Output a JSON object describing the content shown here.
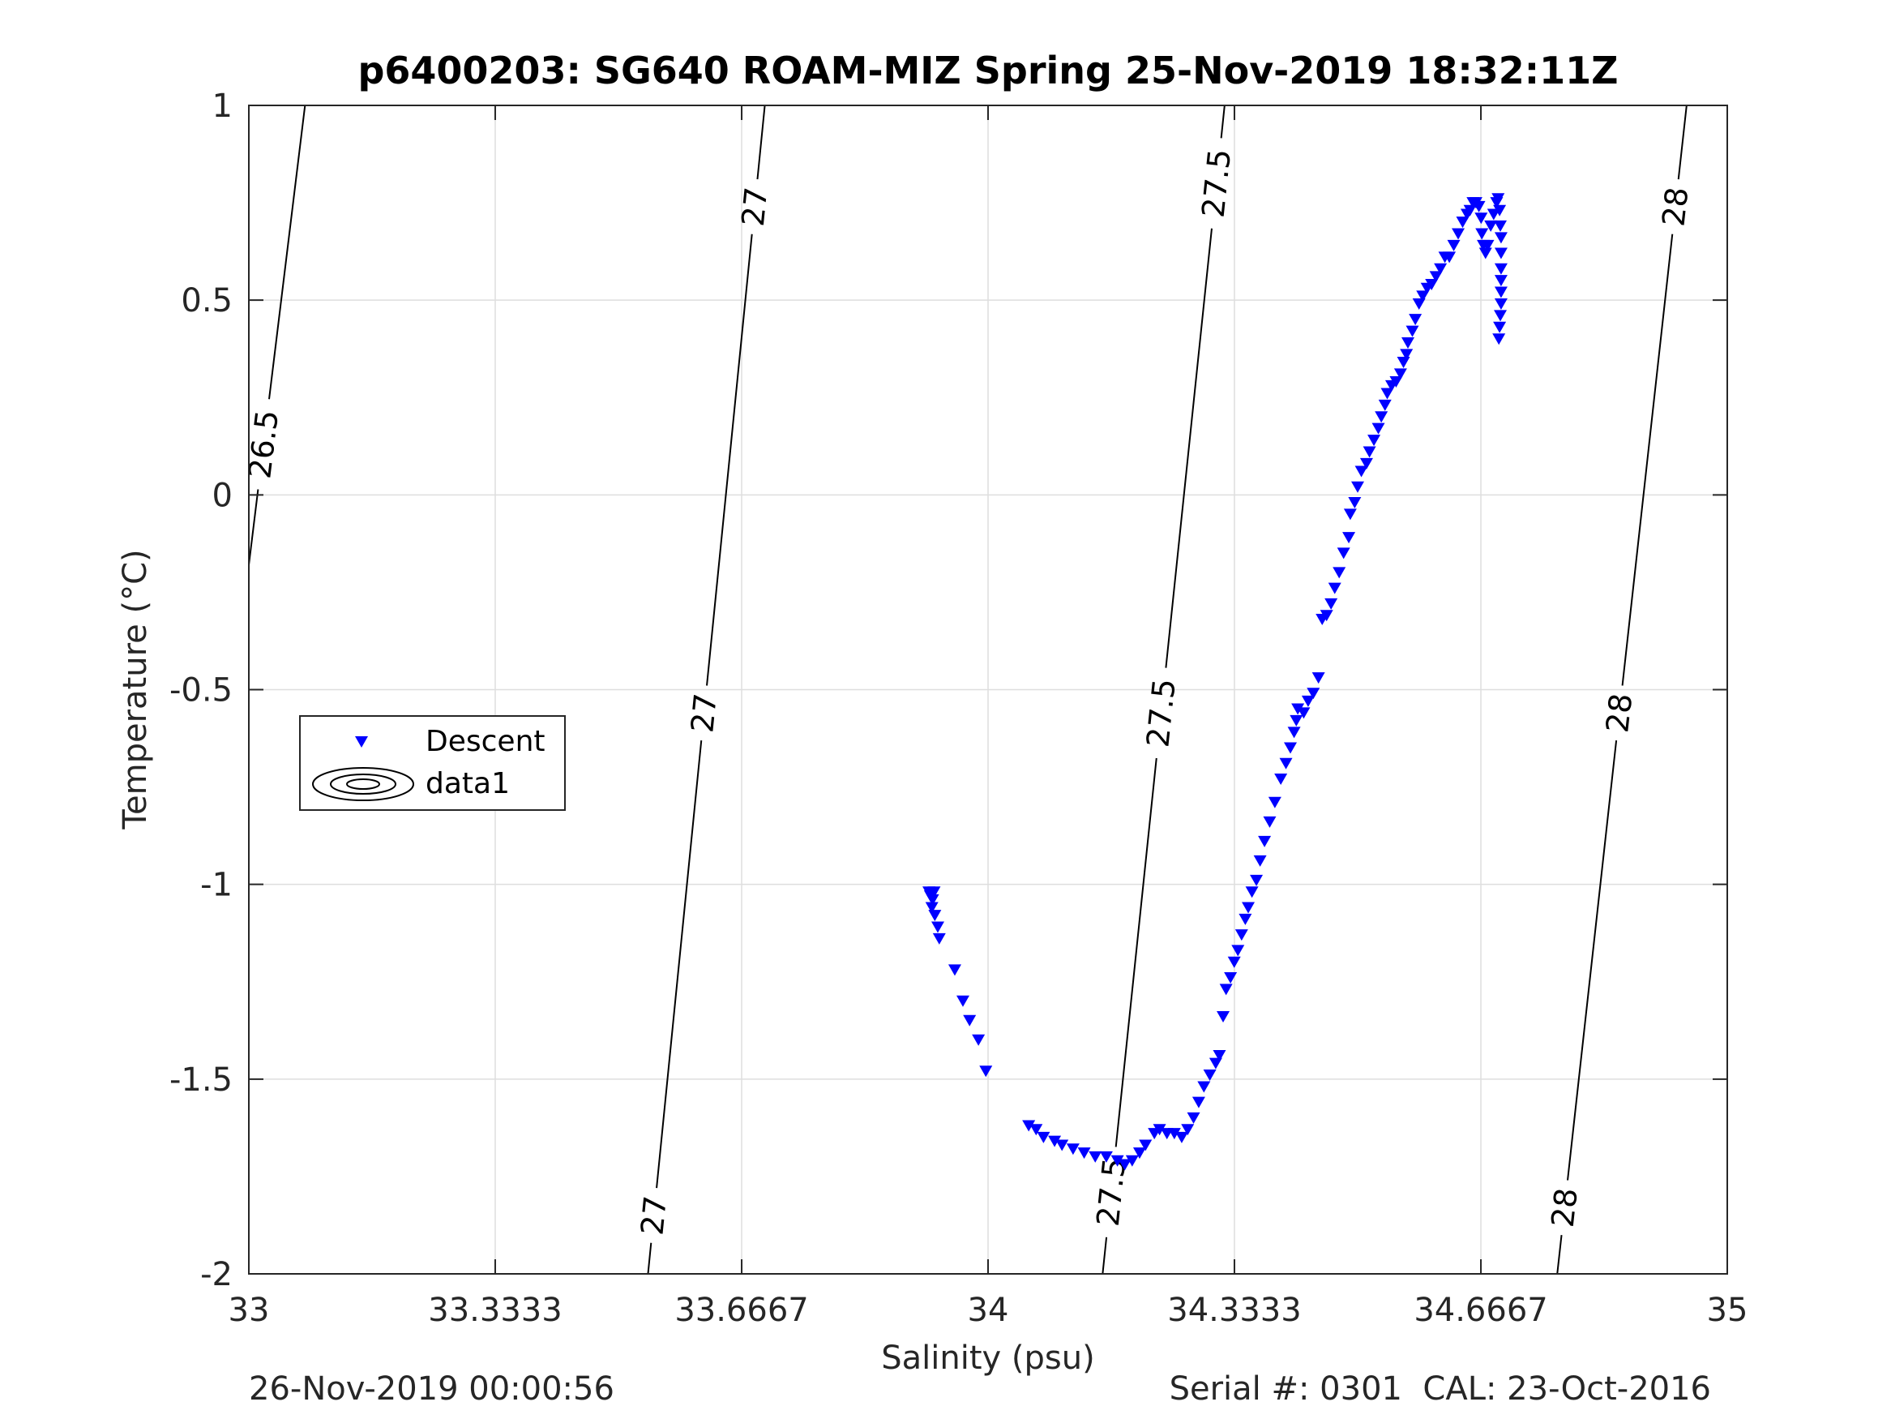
{
  "chart_data": {
    "type": "scatter",
    "title": "p6400203: SG640 ROAM-MIZ Spring 25-Nov-2019 18:32:11Z",
    "xlabel": "Salinity (psu)",
    "ylabel": "Temperature (°C)",
    "xlim": [
      33,
      35
    ],
    "ylim": [
      -2,
      1
    ],
    "xticks": [
      33,
      33.3333,
      33.6667,
      34,
      34.3333,
      34.6667,
      35
    ],
    "xtick_labels": [
      "33",
      "33.3333",
      "33.6667",
      "34",
      "34.3333",
      "34.6667",
      "35"
    ],
    "yticks": [
      -2,
      -1.5,
      -1,
      -0.5,
      0,
      0.5,
      1
    ],
    "ytick_labels": [
      "-2",
      "-1.5",
      "-1",
      "-0.5",
      "0",
      "0.5",
      "1"
    ],
    "grid": true,
    "legend": {
      "placement": "middle-left",
      "entries": [
        {
          "label": "Descent",
          "marker": "triangle-down",
          "color": "#0000ff"
        },
        {
          "label": "data1",
          "marker": "contour",
          "color": "#000000"
        }
      ]
    },
    "series": [
      {
        "name": "Descent",
        "marker": "triangle-down",
        "color": "#0000ff",
        "points": [
          [
            33.92,
            -1.02
          ],
          [
            33.922,
            -1.03
          ],
          [
            33.925,
            -1.04
          ],
          [
            33.927,
            -1.02
          ],
          [
            33.924,
            -1.06
          ],
          [
            33.928,
            -1.08
          ],
          [
            33.932,
            -1.11
          ],
          [
            33.934,
            -1.14
          ],
          [
            33.955,
            -1.22
          ],
          [
            33.966,
            -1.3
          ],
          [
            33.975,
            -1.35
          ],
          [
            33.987,
            -1.4
          ],
          [
            33.997,
            -1.48
          ],
          [
            34.055,
            -1.62
          ],
          [
            34.065,
            -1.63
          ],
          [
            34.075,
            -1.65
          ],
          [
            34.09,
            -1.66
          ],
          [
            34.1,
            -1.67
          ],
          [
            34.115,
            -1.68
          ],
          [
            34.13,
            -1.69
          ],
          [
            34.145,
            -1.7
          ],
          [
            34.16,
            -1.7
          ],
          [
            34.175,
            -1.71
          ],
          [
            34.185,
            -1.72
          ],
          [
            34.195,
            -1.71
          ],
          [
            34.205,
            -1.69
          ],
          [
            34.213,
            -1.67
          ],
          [
            34.225,
            -1.64
          ],
          [
            34.232,
            -1.63
          ],
          [
            34.242,
            -1.64
          ],
          [
            34.252,
            -1.64
          ],
          [
            34.262,
            -1.65
          ],
          [
            34.27,
            -1.63
          ],
          [
            34.278,
            -1.6
          ],
          [
            34.285,
            -1.56
          ],
          [
            34.292,
            -1.52
          ],
          [
            34.3,
            -1.49
          ],
          [
            34.308,
            -1.46
          ],
          [
            34.313,
            -1.44
          ],
          [
            34.318,
            -1.34
          ],
          [
            34.322,
            -1.27
          ],
          [
            34.328,
            -1.24
          ],
          [
            34.333,
            -1.2
          ],
          [
            34.338,
            -1.17
          ],
          [
            34.343,
            -1.13
          ],
          [
            34.348,
            -1.09
          ],
          [
            34.352,
            -1.06
          ],
          [
            34.357,
            -1.02
          ],
          [
            34.363,
            -0.99
          ],
          [
            34.368,
            -0.94
          ],
          [
            34.374,
            -0.89
          ],
          [
            34.381,
            -0.84
          ],
          [
            34.388,
            -0.79
          ],
          [
            34.396,
            -0.73
          ],
          [
            34.403,
            -0.69
          ],
          [
            34.409,
            -0.65
          ],
          [
            34.414,
            -0.61
          ],
          [
            34.417,
            -0.58
          ],
          [
            34.419,
            -0.55
          ],
          [
            34.427,
            -0.56
          ],
          [
            34.433,
            -0.53
          ],
          [
            34.44,
            -0.51
          ],
          [
            34.447,
            -0.47
          ],
          [
            34.452,
            -0.32
          ],
          [
            34.458,
            -0.31
          ],
          [
            34.464,
            -0.28
          ],
          [
            34.469,
            -0.24
          ],
          [
            34.475,
            -0.2
          ],
          [
            34.481,
            -0.15
          ],
          [
            34.488,
            -0.11
          ],
          [
            34.49,
            -0.05
          ],
          [
            34.496,
            -0.02
          ],
          [
            34.5,
            0.02
          ],
          [
            34.505,
            0.06
          ],
          [
            34.512,
            0.08
          ],
          [
            34.516,
            0.11
          ],
          [
            34.522,
            0.14
          ],
          [
            34.528,
            0.17
          ],
          [
            34.532,
            0.2
          ],
          [
            34.537,
            0.23
          ],
          [
            34.54,
            0.26
          ],
          [
            34.546,
            0.28
          ],
          [
            34.552,
            0.29
          ],
          [
            34.558,
            0.31
          ],
          [
            34.562,
            0.34
          ],
          [
            34.566,
            0.36
          ],
          [
            34.568,
            0.39
          ],
          [
            34.574,
            0.42
          ],
          [
            34.578,
            0.45
          ],
          [
            34.583,
            0.49
          ],
          [
            34.588,
            0.51
          ],
          [
            34.594,
            0.53
          ],
          [
            34.6,
            0.54
          ],
          [
            34.606,
            0.56
          ],
          [
            34.612,
            0.58
          ],
          [
            34.618,
            0.61
          ],
          [
            34.624,
            0.61
          ],
          [
            34.63,
            0.64
          ],
          [
            34.636,
            0.67
          ],
          [
            34.642,
            0.7
          ],
          [
            34.648,
            0.72
          ],
          [
            34.652,
            0.73
          ],
          [
            34.656,
            0.75
          ],
          [
            34.66,
            0.75
          ],
          [
            34.664,
            0.74
          ],
          [
            34.667,
            0.71
          ],
          [
            34.668,
            0.67
          ],
          [
            34.67,
            0.64
          ],
          [
            34.673,
            0.62
          ],
          [
            34.676,
            0.64
          ],
          [
            34.68,
            0.69
          ],
          [
            34.684,
            0.72
          ],
          [
            34.688,
            0.75
          ],
          [
            34.69,
            0.76
          ],
          [
            34.692,
            0.73
          ],
          [
            34.693,
            0.69
          ],
          [
            34.694,
            0.66
          ],
          [
            34.694,
            0.62
          ],
          [
            34.694,
            0.58
          ],
          [
            34.694,
            0.55
          ],
          [
            34.694,
            0.52
          ],
          [
            34.694,
            0.49
          ],
          [
            34.693,
            0.46
          ],
          [
            34.692,
            0.43
          ],
          [
            34.691,
            0.4
          ]
        ]
      }
    ],
    "contours": [
      {
        "level": 26.5,
        "label": "26.5",
        "points": [
          [
            33,
            -0.18
          ],
          [
            33.076,
            1.0
          ]
        ],
        "labels_at": [
          0.13
        ]
      },
      {
        "level": 27,
        "label": "27",
        "points": [
          [
            33.54,
            -2.0
          ],
          [
            33.698,
            1.0
          ]
        ],
        "labels_at": [
          -1.85,
          -0.56,
          0.74
        ]
      },
      {
        "level": 27.5,
        "label": "27.5",
        "points": [
          [
            34.155,
            -2.0
          ],
          [
            34.32,
            1.0
          ]
        ],
        "labels_at": [
          -1.79,
          -0.56,
          0.8
        ]
      },
      {
        "level": 28,
        "label": "28",
        "points": [
          [
            34.77,
            -2.0
          ],
          [
            34.945,
            1.0
          ]
        ],
        "labels_at": [
          -1.83,
          -0.56,
          0.74
        ]
      }
    ]
  },
  "footer": {
    "timestamp": "26-Nov-2019 00:00:56",
    "serial": "Serial #: 0301  CAL: 23-Oct-2016"
  }
}
